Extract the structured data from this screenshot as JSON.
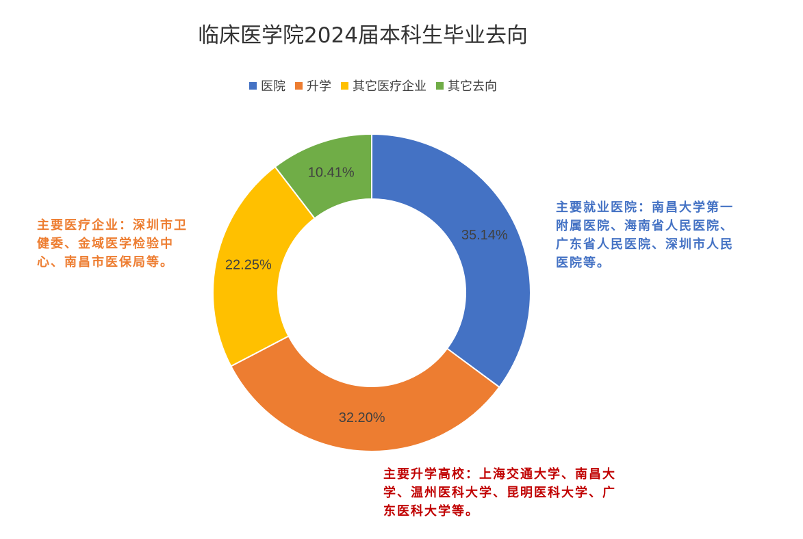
{
  "chart_data": {
    "type": "pie",
    "title": "临床医学院2024届本科生毕业去向",
    "labels": [
      "医院",
      "升学",
      "其它医疗企业",
      "其它去向"
    ],
    "values": [
      35.14,
      32.2,
      22.25,
      10.41
    ],
    "data_labels": [
      "35.14%",
      "32.20%",
      "22.25%",
      "10.41%"
    ],
    "colors": [
      "#4472C4",
      "#ED7D31",
      "#FFC000",
      "#70AD47"
    ],
    "donut": true,
    "legend_position": "top"
  },
  "annotations": {
    "hospital": "主要就业医院：南昌大学第一附属医院、海南省人民医院、广东省人民医院、深圳市人民医院等。",
    "enterprise": "主要医疗企业：深圳市卫健委、金域医学检验中心、南昌市医保局等。",
    "further_study": "主要升学高校：上海交通大学、南昌大学、温州医科大学、昆明医科大学、广东医科大学等。"
  }
}
